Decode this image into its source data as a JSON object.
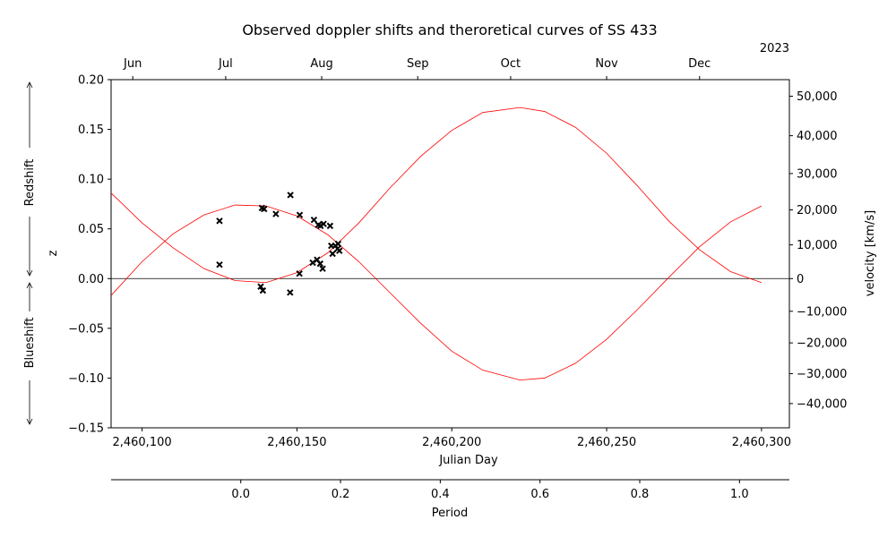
{
  "chart_data": {
    "type": "scatter",
    "title": "Observed doppler shifts and theroretical curves of SS 433",
    "xlabel": "Julian Day",
    "ylabel": "z",
    "right_ylabel": "velocity [km/s]",
    "xlim": [
      2460090,
      2460309
    ],
    "ylim": [
      -0.15,
      0.2
    ],
    "x_ticks": [
      {
        "value": 2460100,
        "label": "2,460,100"
      },
      {
        "value": 2460150,
        "label": "2,460,150"
      },
      {
        "value": 2460200,
        "label": "2,460,200"
      },
      {
        "value": 2460250,
        "label": "2,460,250"
      },
      {
        "value": 2460300,
        "label": "2,460,300"
      }
    ],
    "y_ticks": [
      {
        "value": -0.15,
        "label": "−0.15"
      },
      {
        "value": -0.1,
        "label": "−0.10"
      },
      {
        "value": -0.05,
        "label": "−0.05"
      },
      {
        "value": 0,
        "label": "0.00"
      },
      {
        "value": 0.05,
        "label": "0.05"
      },
      {
        "value": 0.1,
        "label": "0.10"
      },
      {
        "value": 0.15,
        "label": "0.15"
      },
      {
        "value": 0.2,
        "label": "0.20"
      }
    ],
    "velocity_ticks": [
      {
        "value": -40000,
        "label": "−40,000"
      },
      {
        "value": -30000,
        "label": "−30,000"
      },
      {
        "value": -20000,
        "label": "−20,000"
      },
      {
        "value": -10000,
        "label": "−10,000"
      },
      {
        "value": 0,
        "label": "0"
      },
      {
        "value": 10000,
        "label": "10,000"
      },
      {
        "value": 20000,
        "label": "20,000"
      },
      {
        "value": 30000,
        "label": "30,000"
      },
      {
        "value": 40000,
        "label": "40,000"
      },
      {
        "value": 50000,
        "label": "50,000"
      }
    ],
    "month_axis": {
      "year_label": "2023",
      "ticks": [
        {
          "value": 2460097,
          "label": "Jun"
        },
        {
          "value": 2460127,
          "label": "Jul"
        },
        {
          "value": 2460158,
          "label": "Aug"
        },
        {
          "value": 2460189,
          "label": "Sep"
        },
        {
          "value": 2460219,
          "label": "Oct"
        },
        {
          "value": 2460250,
          "label": "Nov"
        },
        {
          "value": 2460280,
          "label": "Dec"
        }
      ]
    },
    "period_axis": {
      "xlabel": "Period",
      "xlim": [
        -0.26,
        1.1
      ],
      "ticks": [
        {
          "value": 0,
          "label": "0.0"
        },
        {
          "value": 0.2,
          "label": "0.2"
        },
        {
          "value": 0.4,
          "label": "0.4"
        },
        {
          "value": 0.6,
          "label": "0.6"
        },
        {
          "value": 0.8,
          "label": "0.8"
        },
        {
          "value": 1.0,
          "label": "1.0"
        }
      ]
    },
    "side_labels": {
      "redshift": "Redshift",
      "blueshift": "Blueshift"
    },
    "zero_line": 0,
    "series": [
      {
        "kind": "scatter",
        "color": "#000000",
        "marker": "x",
        "points": [
          [
            2460125,
            0.058
          ],
          [
            2460125,
            0.014
          ],
          [
            2460138.7,
            0.071
          ],
          [
            2460139.4,
            0.07
          ],
          [
            2460143.2,
            0.065
          ],
          [
            2460147.9,
            0.084
          ],
          [
            2460150.9,
            0.064
          ],
          [
            2460138.3,
            -0.008
          ],
          [
            2460139,
            -0.012
          ],
          [
            2460147.8,
            -0.014
          ],
          [
            2460155.5,
            0.059
          ],
          [
            2460156.9,
            0.054
          ],
          [
            2460157.6,
            0.053
          ],
          [
            2460158.6,
            0.055
          ],
          [
            2460160.7,
            0.053
          ],
          [
            2460150.8,
            0.005
          ],
          [
            2460155.1,
            0.016
          ],
          [
            2460156.5,
            0.019
          ],
          [
            2460157.5,
            0.015
          ],
          [
            2460158.3,
            0.01
          ],
          [
            2460161.1,
            0.033
          ],
          [
            2460161.5,
            0.025
          ],
          [
            2460162.4,
            0.033
          ],
          [
            2460163.3,
            0.035
          ],
          [
            2460163.1,
            0.03
          ],
          [
            2460163.7,
            0.028
          ]
        ]
      },
      {
        "kind": "curve",
        "color": "#ff0000",
        "points": [
          [
            2460090,
            -0.017
          ],
          [
            2460100,
            0.017
          ],
          [
            2460110,
            0.045
          ],
          [
            2460120,
            0.064
          ],
          [
            2460130,
            0.074
          ],
          [
            2460140,
            0.073
          ],
          [
            2460150,
            0.063
          ],
          [
            2460160,
            0.044
          ],
          [
            2460170,
            0.017
          ],
          [
            2460180,
            -0.014
          ],
          [
            2460190,
            -0.045
          ],
          [
            2460200,
            -0.073
          ],
          [
            2460210,
            -0.092
          ],
          [
            2460222,
            -0.102
          ],
          [
            2460230,
            -0.1
          ],
          [
            2460240,
            -0.085
          ],
          [
            2460250,
            -0.061
          ],
          [
            2460260,
            -0.031
          ],
          [
            2460270,
            0.001
          ],
          [
            2460280,
            0.032
          ],
          [
            2460290,
            0.057
          ],
          [
            2460300,
            0.073
          ]
        ]
      },
      {
        "kind": "curve",
        "color": "#ff0000",
        "points": [
          [
            2460090,
            0.086
          ],
          [
            2460100,
            0.056
          ],
          [
            2460110,
            0.031
          ],
          [
            2460120,
            0.01
          ],
          [
            2460130,
            -0.002
          ],
          [
            2460140,
            -0.004
          ],
          [
            2460150,
            0.006
          ],
          [
            2460160,
            0.026
          ],
          [
            2460170,
            0.056
          ],
          [
            2460180,
            0.091
          ],
          [
            2460190,
            0.123
          ],
          [
            2460200,
            0.149
          ],
          [
            2460210,
            0.167
          ],
          [
            2460222,
            0.172
          ],
          [
            2460230,
            0.168
          ],
          [
            2460240,
            0.152
          ],
          [
            2460250,
            0.126
          ],
          [
            2460260,
            0.093
          ],
          [
            2460270,
            0.058
          ],
          [
            2460280,
            0.029
          ],
          [
            2460290,
            0.007
          ],
          [
            2460300,
            -0.004
          ]
        ]
      }
    ]
  }
}
